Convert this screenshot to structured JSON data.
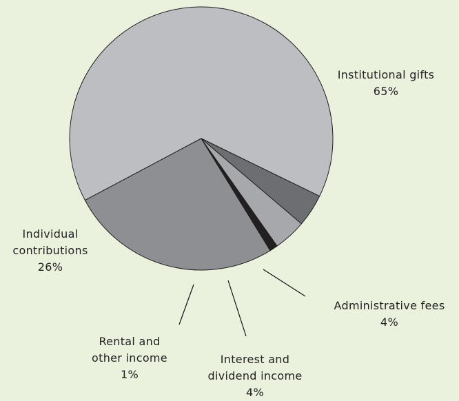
{
  "chart_data": {
    "type": "pie",
    "start_angle_deg": -26,
    "direction": "counterclockwise",
    "slices": [
      {
        "label_lines": [
          "Institutional gifts"
        ],
        "pct_text": "65%",
        "value": 65,
        "color": "#bdbec2"
      },
      {
        "label_lines": [
          "Individual",
          "contributions"
        ],
        "pct_text": "26%",
        "value": 26,
        "color": "#8e8f93"
      },
      {
        "label_lines": [
          "Rental and",
          "other income"
        ],
        "pct_text": "1%",
        "value": 1,
        "color": "#231f20"
      },
      {
        "label_lines": [
          "Interest and",
          "dividend income"
        ],
        "pct_text": "4%",
        "value": 4,
        "color": "#a7a8ac"
      },
      {
        "label_lines": [
          "Administrative fees"
        ],
        "pct_text": "4%",
        "value": 4,
        "color": "#6d6e72"
      }
    ],
    "background": "#eaf1dd"
  }
}
